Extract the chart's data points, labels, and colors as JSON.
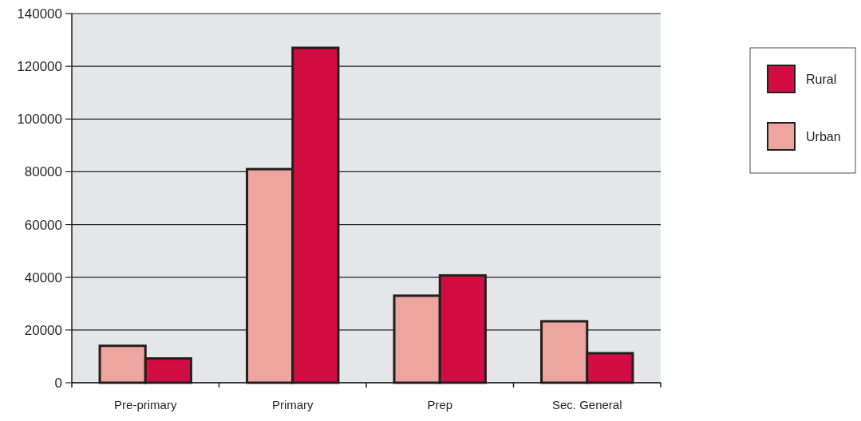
{
  "chart_data": {
    "type": "bar",
    "categories": [
      "Pre-primary",
      "Primary",
      "Prep",
      "Sec. General"
    ],
    "series": [
      {
        "name": "Urban",
        "color": "#eca59f",
        "values": [
          14000,
          81000,
          33000,
          23300
        ]
      },
      {
        "name": "Rural",
        "color": "#d20d42",
        "values": [
          9200,
          127000,
          40700,
          11200
        ]
      }
    ],
    "ylim": [
      0,
      140000
    ],
    "yticks": [
      0,
      20000,
      40000,
      60000,
      80000,
      100000,
      120000,
      140000
    ],
    "grid": "y",
    "legend": "right"
  }
}
